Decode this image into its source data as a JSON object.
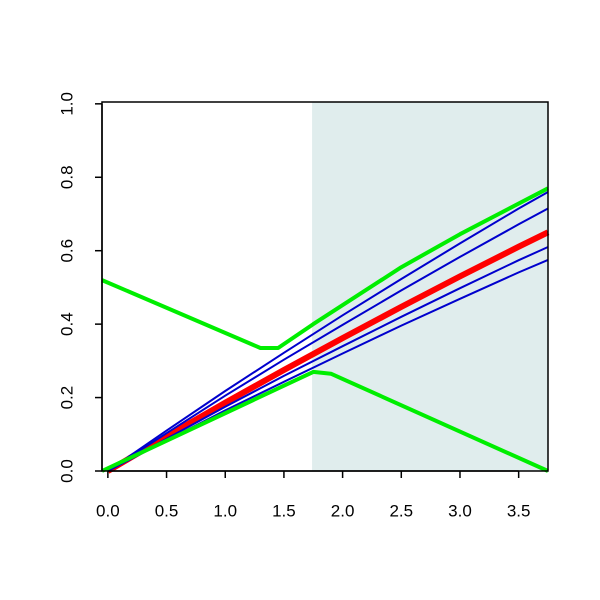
{
  "chart_data": {
    "type": "line",
    "xlim": [
      -0.05,
      3.75
    ],
    "ylim": [
      0,
      1.005
    ],
    "xticks": [
      {
        "value": 0,
        "label": "0.0"
      },
      {
        "value": 0.5,
        "label": "0.5"
      },
      {
        "value": 1,
        "label": "1.0"
      },
      {
        "value": 1.5,
        "label": "1.5"
      },
      {
        "value": 2,
        "label": "2.0"
      },
      {
        "value": 2.5,
        "label": "2.5"
      },
      {
        "value": 3,
        "label": "3.0"
      },
      {
        "value": 3.5,
        "label": "3.5"
      }
    ],
    "yticks": [
      {
        "value": 0,
        "label": "0.0"
      },
      {
        "value": 0.2,
        "label": "0.2"
      },
      {
        "value": 0.4,
        "label": "0.4"
      },
      {
        "value": 0.6,
        "label": "0.6"
      },
      {
        "value": 0.8,
        "label": "0.8"
      },
      {
        "value": 1,
        "label": "1.0"
      }
    ],
    "shaded_region": {
      "x": [
        1.74,
        3.75
      ],
      "color": "#e0eded"
    },
    "series": [
      {
        "color": "#ff0000",
        "x": [
          0,
          0.5,
          1,
          1.5,
          2,
          2.5,
          3,
          3.5,
          3.75
        ],
        "values": [
          0,
          0.094,
          0.186,
          0.275,
          0.362,
          0.447,
          0.53,
          0.611,
          0.65
        ]
      },
      {
        "color": "#0000cd",
        "x": [
          0,
          0.5,
          1,
          1.5,
          2,
          2.5,
          3,
          3.5,
          3.75
        ],
        "values": [
          0,
          0.11,
          0.218,
          0.322,
          0.424,
          0.523,
          0.62,
          0.715,
          0.76
        ]
      },
      {
        "color": "#0000cd",
        "x": [
          0,
          0.5,
          1,
          1.5,
          2,
          2.5,
          3,
          3.5,
          3.75
        ],
        "values": [
          0,
          0.103,
          0.205,
          0.303,
          0.398,
          0.492,
          0.583,
          0.672,
          0.715
        ]
      },
      {
        "color": "#0000cd",
        "x": [
          0,
          0.5,
          1,
          1.5,
          2,
          2.5,
          3,
          3.5,
          3.75
        ],
        "values": [
          0,
          0.088,
          0.175,
          0.259,
          0.34,
          0.42,
          0.498,
          0.574,
          0.61
        ]
      },
      {
        "color": "#0000cd",
        "x": [
          0,
          0.5,
          1,
          1.5,
          2,
          2.5,
          3,
          3.5,
          3.75
        ],
        "values": [
          0,
          0.083,
          0.165,
          0.243,
          0.32,
          0.396,
          0.469,
          0.541,
          0.575
        ]
      },
      {
        "color": "#00ee00",
        "x": [
          -0.05,
          1.3,
          1.45,
          1.75,
          2.5,
          3,
          3.75
        ],
        "values": [
          0.52,
          0.335,
          0.335,
          0.4,
          0.555,
          0.645,
          0.77
        ]
      },
      {
        "color": "#00ee00",
        "x": [
          -0.05,
          1.75,
          1.9,
          3.75
        ],
        "values": [
          0,
          0.27,
          0.265,
          0
        ]
      }
    ]
  }
}
